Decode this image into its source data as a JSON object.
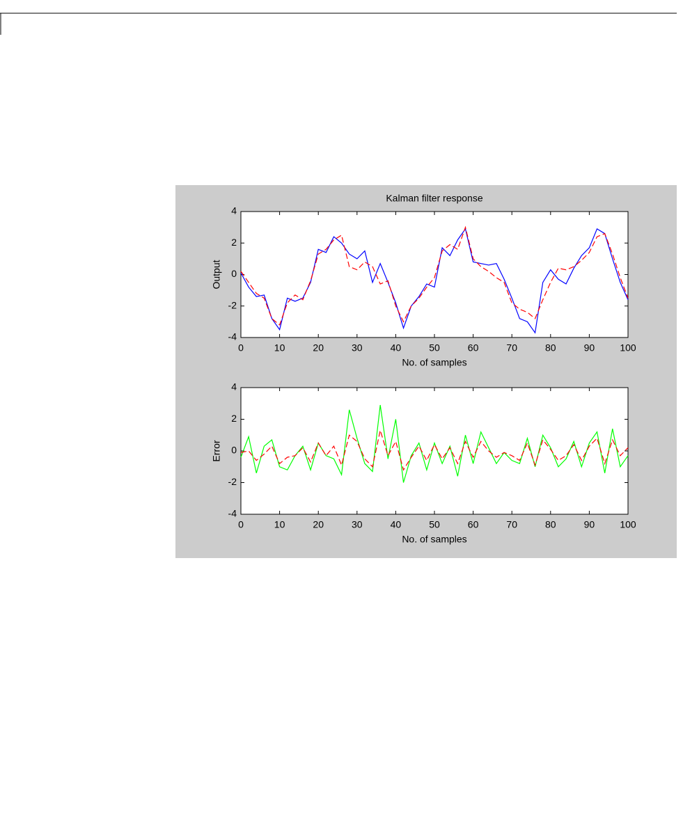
{
  "chart_data": [
    {
      "type": "line",
      "title": "Kalman filter response",
      "xlabel": "No. of samples",
      "ylabel": "Output",
      "x": [
        0,
        2,
        4,
        6,
        8,
        10,
        12,
        14,
        16,
        18,
        20,
        22,
        24,
        26,
        28,
        30,
        32,
        34,
        36,
        38,
        40,
        42,
        44,
        46,
        48,
        50,
        52,
        54,
        56,
        58,
        60,
        62,
        64,
        66,
        68,
        70,
        72,
        74,
        76,
        78,
        80,
        82,
        84,
        86,
        88,
        90,
        92,
        94,
        96,
        98,
        100
      ],
      "xlim": [
        0,
        100
      ],
      "xticks": [
        0,
        10,
        20,
        30,
        40,
        50,
        60,
        70,
        80,
        90,
        100
      ],
      "ylim": [
        -4,
        4
      ],
      "yticks": [
        -4,
        -2,
        0,
        2,
        4
      ],
      "series": [
        {
          "color": "#0000ff",
          "style": "solid",
          "values": [
            0.1,
            -0.8,
            -1.4,
            -1.3,
            -2.8,
            -3.5,
            -1.5,
            -1.7,
            -1.5,
            -0.5,
            1.6,
            1.4,
            2.4,
            2.0,
            1.3,
            1.0,
            1.5,
            -0.5,
            0.7,
            -0.5,
            -1.8,
            -3.4,
            -2.0,
            -1.4,
            -0.6,
            -0.8,
            1.7,
            1.2,
            2.2,
            2.9,
            0.8,
            0.7,
            0.6,
            0.7,
            -0.3,
            -1.5,
            -2.8,
            -3.0,
            -3.7,
            -0.5,
            0.3,
            -0.3,
            -0.6,
            0.4,
            1.2,
            1.7,
            2.9,
            2.6,
            1.0,
            -0.5,
            -1.6
          ]
        },
        {
          "color": "#ff0000",
          "style": "dashed",
          "values": [
            0.2,
            -0.5,
            -1.2,
            -1.5,
            -2.8,
            -3.2,
            -1.8,
            -1.3,
            -1.6,
            -0.4,
            1.3,
            1.6,
            2.2,
            2.5,
            0.5,
            0.3,
            0.8,
            0.5,
            -0.6,
            -0.4,
            -2.0,
            -3.0,
            -2.0,
            -1.5,
            -0.8,
            -0.2,
            1.5,
            1.9,
            1.6,
            3.0,
            1.0,
            0.5,
            0.2,
            -0.2,
            -0.5,
            -1.8,
            -2.2,
            -2.4,
            -2.8,
            -1.6,
            -0.5,
            0.4,
            0.3,
            0.5,
            0.9,
            1.4,
            2.4,
            2.6,
            1.3,
            -0.2,
            -1.5
          ]
        }
      ]
    },
    {
      "type": "line",
      "xlabel": "No. of samples",
      "ylabel": "Error",
      "x": [
        0,
        2,
        4,
        6,
        8,
        10,
        12,
        14,
        16,
        18,
        20,
        22,
        24,
        26,
        28,
        30,
        32,
        34,
        36,
        38,
        40,
        42,
        44,
        46,
        48,
        50,
        52,
        54,
        56,
        58,
        60,
        62,
        64,
        66,
        68,
        70,
        72,
        74,
        76,
        78,
        80,
        82,
        84,
        86,
        88,
        90,
        92,
        94,
        96,
        98,
        100
      ],
      "xlim": [
        0,
        100
      ],
      "xticks": [
        0,
        10,
        20,
        30,
        40,
        50,
        60,
        70,
        80,
        90,
        100
      ],
      "ylim": [
        -4,
        4
      ],
      "yticks": [
        -4,
        -2,
        0,
        2,
        4
      ],
      "series": [
        {
          "color": "#00ff00",
          "style": "solid",
          "values": [
            -0.4,
            0.9,
            -1.4,
            0.3,
            0.7,
            -1.0,
            -1.2,
            -0.3,
            0.3,
            -1.2,
            0.5,
            -0.3,
            -0.5,
            -1.5,
            2.6,
            0.8,
            -0.8,
            -1.3,
            2.9,
            -0.5,
            2.0,
            -2.0,
            -0.3,
            0.5,
            -1.2,
            0.5,
            -0.8,
            0.3,
            -1.6,
            1.0,
            -0.8,
            1.2,
            0.2,
            -0.8,
            -0.1,
            -0.6,
            -0.8,
            0.8,
            -1.0,
            1.0,
            0.2,
            -1.0,
            -0.5,
            0.6,
            -1.0,
            0.5,
            1.2,
            -1.4,
            1.4,
            -1.0,
            -0.3
          ]
        },
        {
          "color": "#ff0000",
          "style": "dashed",
          "values": [
            -0.1,
            0.0,
            -0.6,
            -0.2,
            0.3,
            -0.8,
            -0.4,
            -0.3,
            0.2,
            -0.7,
            0.5,
            -0.3,
            0.3,
            -0.9,
            1.0,
            0.6,
            -0.5,
            -1.0,
            1.3,
            -0.3,
            0.6,
            -1.2,
            -0.4,
            0.3,
            -0.6,
            0.4,
            -0.5,
            0.2,
            -0.8,
            0.6,
            -0.4,
            0.6,
            0.0,
            -0.4,
            -0.1,
            -0.3,
            -0.6,
            0.5,
            -0.9,
            0.7,
            0.1,
            -0.6,
            -0.3,
            0.4,
            -0.6,
            0.3,
            0.8,
            -0.8,
            0.7,
            -0.3,
            0.2
          ]
        }
      ]
    }
  ]
}
